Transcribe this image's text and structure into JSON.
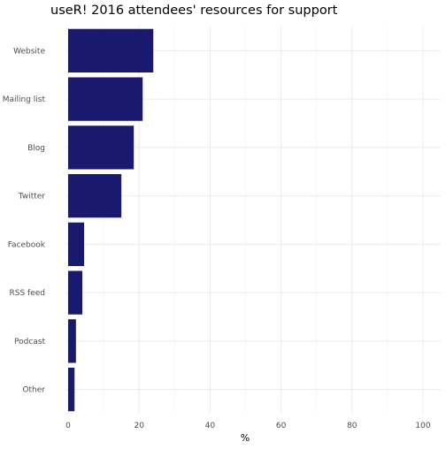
{
  "chart_data": {
    "type": "bar",
    "orientation": "horizontal",
    "title": "useR! 2016 attendees' resources for support",
    "xlabel": "%",
    "ylabel": "",
    "categories": [
      "Website",
      "Mailing list",
      "Blog",
      "Twitter",
      "Facebook",
      "RSS feed",
      "Podcast",
      "Other"
    ],
    "values": [
      24,
      21,
      18.5,
      15,
      4.5,
      4,
      2.2,
      1.8
    ],
    "xlim": [
      0,
      100
    ],
    "xticks": [
      "0",
      "20",
      "40",
      "60",
      "80",
      "100"
    ],
    "grid": true,
    "legend": "none",
    "bar_color": "#191970"
  }
}
